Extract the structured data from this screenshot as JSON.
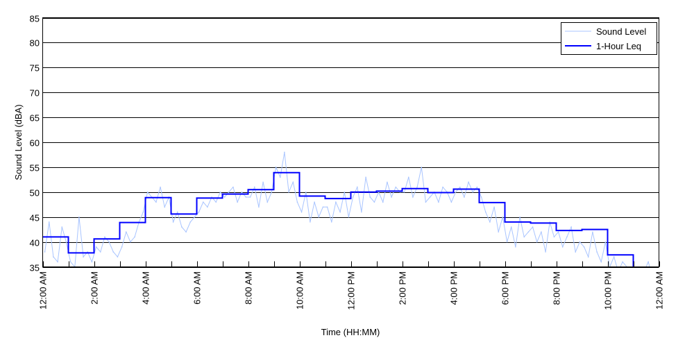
{
  "chart_data": {
    "type": "line",
    "title": "",
    "xlabel": "Time (HH:MM)",
    "ylabel": "Sound Level (dBA)",
    "ylim": [
      35,
      85
    ],
    "xlim_hours": [
      0,
      24
    ],
    "grid": "horizontal",
    "legend_position": "top-right",
    "y_ticks": [
      35,
      40,
      45,
      50,
      55,
      60,
      65,
      70,
      75,
      80,
      85
    ],
    "x_tick_labels": [
      "12:00 AM",
      "2:00 AM",
      "4:00 AM",
      "6:00 AM",
      "8:00 AM",
      "10:00 AM",
      "12:00 PM",
      "2:00 PM",
      "4:00 PM",
      "6:00 PM",
      "8:00 PM",
      "10:00 PM",
      "12:00 AM"
    ],
    "x_tick_label_hours": [
      0,
      2,
      4,
      6,
      8,
      10,
      12,
      14,
      16,
      18,
      20,
      22,
      24
    ],
    "series": [
      {
        "name": "Sound Level",
        "color": "#a8c4ff",
        "interval_minutes": 10,
        "values": [
          38,
          44,
          37,
          36,
          43,
          40,
          36,
          35,
          45,
          37,
          38,
          36,
          39,
          38,
          41,
          40,
          38,
          37,
          39,
          42,
          40,
          41,
          44,
          46,
          50,
          49,
          48,
          51,
          47,
          49,
          44,
          46,
          43,
          42,
          44,
          45,
          46,
          48,
          47,
          49,
          48,
          50,
          49,
          50,
          51,
          48,
          50,
          49,
          49,
          51,
          47,
          52,
          48,
          50,
          55,
          53,
          58,
          50,
          52,
          48,
          46,
          50,
          44,
          48,
          45,
          47,
          47,
          44,
          48,
          46,
          50,
          45,
          49,
          51,
          46,
          53,
          49,
          48,
          50,
          48,
          52,
          49,
          51,
          50,
          50,
          53,
          49,
          51,
          55,
          48,
          49,
          50,
          48,
          51,
          50,
          48,
          50,
          51,
          49,
          52,
          50,
          51,
          49,
          46,
          44,
          47,
          42,
          45,
          40,
          43,
          39,
          45,
          41,
          42,
          43,
          40,
          42,
          38,
          44,
          41,
          42,
          39,
          41,
          43,
          38,
          40,
          39,
          37,
          42,
          38,
          36,
          40,
          35,
          37,
          34,
          36,
          35,
          33,
          33,
          32,
          34,
          36,
          33,
          32
        ]
      },
      {
        "name": "1-Hour Leq",
        "color": "#0000ff",
        "interval_minutes": 60,
        "values": [
          41.0,
          37.8,
          40.6,
          43.9,
          48.9,
          45.6,
          48.8,
          49.6,
          50.5,
          53.9,
          49.2,
          48.7,
          50.0,
          50.2,
          50.7,
          49.9,
          50.6,
          47.9,
          44.0,
          43.8,
          42.3,
          42.5,
          37.4,
          33.0
        ]
      }
    ]
  }
}
